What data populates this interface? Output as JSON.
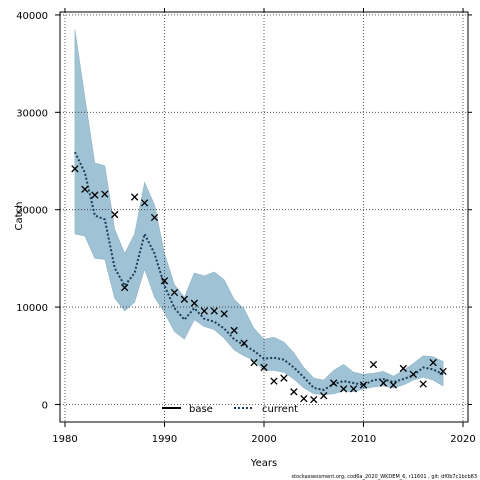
{
  "chart_data": {
    "type": "line",
    "xlabel": "Years",
    "ylabel": "Catch",
    "xlim": [
      1979.5,
      2020.5
    ],
    "ylim": [
      -1800,
      40300
    ],
    "x_ticks": [
      1980,
      1990,
      2000,
      2010,
      2020
    ],
    "y_ticks": [
      0,
      10000,
      20000,
      30000,
      40000
    ],
    "x_tick_labels": [
      "1980",
      "1990",
      "2000",
      "2010",
      "2020"
    ],
    "y_tick_labels": [
      "0",
      "10000",
      "20000",
      "30000",
      "40000"
    ],
    "grid": true,
    "legend": {
      "placement": "bottom-center",
      "entries": [
        {
          "name": "base",
          "style": "solid",
          "color": "#000000"
        },
        {
          "name": "current",
          "style": "dotted",
          "color": "#1a3d5c"
        }
      ]
    },
    "years": [
      1981,
      1982,
      1983,
      1984,
      1985,
      1986,
      1987,
      1988,
      1989,
      1990,
      1991,
      1992,
      1993,
      1994,
      1995,
      1996,
      1997,
      1998,
      1999,
      2000,
      2001,
      2002,
      2003,
      2004,
      2005,
      2006,
      2007,
      2008,
      2009,
      2010,
      2011,
      2012,
      2013,
      2014,
      2015,
      2016,
      2017,
      2018
    ],
    "series": [
      {
        "name": "current",
        "kind": "fitted-line",
        "color": "#1a3d5c",
        "values": [
          25900,
          23800,
          19400,
          19000,
          14000,
          12200,
          13500,
          17500,
          15500,
          12200,
          9900,
          8700,
          9900,
          8800,
          8500,
          7800,
          6700,
          6100,
          5500,
          4700,
          4800,
          4600,
          3800,
          2800,
          1700,
          1500,
          2100,
          2400,
          2200,
          2000,
          2500,
          2600,
          2300,
          2600,
          3000,
          3800,
          3600,
          3100
        ]
      },
      {
        "name": "uncertainty-upper",
        "kind": "band-upper",
        "color": "#9fc2d4",
        "values": [
          38500,
          31500,
          24800,
          24500,
          18000,
          15500,
          17500,
          22800,
          20500,
          15500,
          12300,
          11000,
          13500,
          13200,
          13600,
          12800,
          10800,
          9800,
          7800,
          6700,
          6900,
          6400,
          5300,
          3800,
          2700,
          2500,
          3500,
          4100,
          3300,
          3100,
          3200,
          3400,
          2900,
          3500,
          4200,
          5000,
          4900,
          4400
        ]
      },
      {
        "name": "uncertainty-lower",
        "kind": "band-lower",
        "color": "#9fc2d4",
        "values": [
          17500,
          17300,
          15000,
          14900,
          10900,
          9600,
          10500,
          13900,
          11000,
          9400,
          7500,
          6700,
          8700,
          8000,
          7700,
          6800,
          5600,
          5000,
          4500,
          3500,
          3500,
          3300,
          2600,
          1700,
          1100,
          1000,
          1100,
          1400,
          1300,
          1600,
          1800,
          1900,
          1700,
          2000,
          2500,
          2800,
          2500,
          1900
        ]
      },
      {
        "name": "observed",
        "kind": "points",
        "marker": "x",
        "color": "#000000",
        "values": [
          24200,
          22100,
          21500,
          21600,
          19500,
          12000,
          21300,
          20700,
          19200,
          12700,
          11500,
          10800,
          10400,
          9600,
          9600,
          9300,
          7600,
          6300,
          4300,
          3800,
          2400,
          2700,
          1300,
          600,
          500,
          900,
          2200,
          1600,
          1600,
          2000,
          4100,
          2200,
          2000,
          3700,
          3100,
          2100,
          4300,
          3400
        ]
      }
    ]
  },
  "footer_text": "stockassessment.org,  cod6a_2020_WKDEM_6,  r11601 ,  git:  df0b7c1bcb83"
}
